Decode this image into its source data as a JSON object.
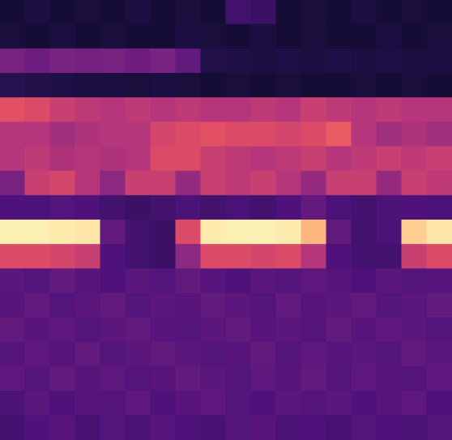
{
  "chart_data": {
    "type": "heatmap",
    "color": "magma",
    "tick_labels": false,
    "zlim": [
      0,
      1
    ],
    "cells": [
      [
        0.1,
        0.12,
        0.1,
        0.11,
        0.1,
        0.12,
        0.1,
        0.11,
        0.1,
        0.22,
        0.2,
        0.1,
        0.11,
        0.1,
        0.12,
        0.1,
        0.11,
        0.1
      ],
      [
        0.11,
        0.1,
        0.12,
        0.1,
        0.11,
        0.1,
        0.1,
        0.12,
        0.11,
        0.1,
        0.12,
        0.1,
        0.11,
        0.1,
        0.1,
        0.12,
        0.1,
        0.11
      ],
      [
        0.35,
        0.33,
        0.36,
        0.34,
        0.35,
        0.33,
        0.36,
        0.3,
        0.14,
        0.13,
        0.12,
        0.13,
        0.12,
        0.13,
        0.12,
        0.13,
        0.12,
        0.12
      ],
      [
        0.15,
        0.14,
        0.13,
        0.12,
        0.12,
        0.11,
        0.12,
        0.11,
        0.1,
        0.11,
        0.1,
        0.11,
        0.1,
        0.1,
        0.11,
        0.1,
        0.11,
        0.1
      ],
      [
        0.62,
        0.6,
        0.55,
        0.52,
        0.5,
        0.52,
        0.5,
        0.52,
        0.5,
        0.5,
        0.52,
        0.5,
        0.55,
        0.52,
        0.5,
        0.52,
        0.5,
        0.5
      ],
      [
        0.5,
        0.5,
        0.45,
        0.48,
        0.5,
        0.5,
        0.58,
        0.6,
        0.62,
        0.6,
        0.6,
        0.58,
        0.6,
        0.65,
        0.5,
        0.45,
        0.48,
        0.45
      ],
      [
        0.5,
        0.52,
        0.48,
        0.5,
        0.48,
        0.5,
        0.6,
        0.6,
        0.55,
        0.52,
        0.5,
        0.52,
        0.55,
        0.5,
        0.52,
        0.55,
        0.52,
        0.55
      ],
      [
        0.35,
        0.55,
        0.58,
        0.5,
        0.4,
        0.55,
        0.55,
        0.42,
        0.55,
        0.52,
        0.55,
        0.5,
        0.42,
        0.55,
        0.55,
        0.42,
        0.55,
        0.52
      ],
      [
        0.25,
        0.24,
        0.26,
        0.25,
        0.22,
        0.2,
        0.22,
        0.24,
        0.22,
        0.24,
        0.22,
        0.25,
        0.3,
        0.24,
        0.22,
        0.24,
        0.25,
        0.24
      ],
      [
        0.97,
        0.97,
        0.96,
        0.95,
        0.3,
        0.22,
        0.2,
        0.6,
        0.96,
        0.97,
        0.97,
        0.96,
        0.85,
        0.3,
        0.22,
        0.24,
        0.9,
        0.95
      ],
      [
        0.6,
        0.6,
        0.58,
        0.55,
        0.25,
        0.22,
        0.2,
        0.4,
        0.6,
        0.6,
        0.58,
        0.6,
        0.5,
        0.25,
        0.22,
        0.22,
        0.55,
        0.6
      ],
      [
        0.28,
        0.26,
        0.3,
        0.27,
        0.25,
        0.28,
        0.26,
        0.3,
        0.27,
        0.25,
        0.28,
        0.26,
        0.29,
        0.27,
        0.25,
        0.28,
        0.26,
        0.27
      ],
      [
        0.27,
        0.3,
        0.26,
        0.28,
        0.3,
        0.26,
        0.28,
        0.27,
        0.3,
        0.28,
        0.26,
        0.3,
        0.27,
        0.28,
        0.3,
        0.26,
        0.28,
        0.3
      ],
      [
        0.3,
        0.27,
        0.29,
        0.26,
        0.28,
        0.3,
        0.27,
        0.26,
        0.28,
        0.3,
        0.27,
        0.28,
        0.26,
        0.3,
        0.27,
        0.29,
        0.28,
        0.26
      ],
      [
        0.26,
        0.29,
        0.27,
        0.3,
        0.26,
        0.28,
        0.3,
        0.28,
        0.26,
        0.27,
        0.3,
        0.26,
        0.29,
        0.27,
        0.28,
        0.26,
        0.3,
        0.28
      ],
      [
        0.29,
        0.26,
        0.3,
        0.27,
        0.29,
        0.26,
        0.27,
        0.3,
        0.28,
        0.26,
        0.29,
        0.27,
        0.3,
        0.26,
        0.29,
        0.27,
        0.26,
        0.29
      ],
      [
        0.24,
        0.28,
        0.25,
        0.27,
        0.26,
        0.29,
        0.25,
        0.27,
        0.29,
        0.26,
        0.25,
        0.28,
        0.26,
        0.28,
        0.25,
        0.27,
        0.29,
        0.25
      ],
      [
        0.22,
        0.25,
        0.27,
        0.23,
        0.26,
        0.24,
        0.27,
        0.25,
        0.23,
        0.26,
        0.27,
        0.24,
        0.25,
        0.23,
        0.26,
        0.25,
        0.24,
        0.26
      ]
    ]
  }
}
